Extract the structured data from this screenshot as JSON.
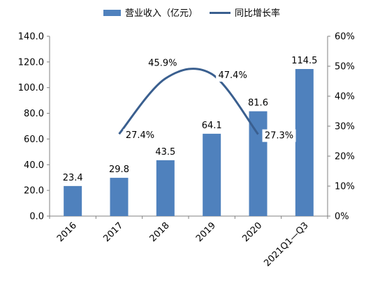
{
  "chart_data": {
    "type": "bar",
    "categories": [
      "2016",
      "2017",
      "2018",
      "2019",
      "2020",
      "2021Q1—Q3"
    ],
    "series": [
      {
        "name": "营业收入（亿元）",
        "type": "bar",
        "axis": "left",
        "color": "#4f81bd",
        "values": [
          23.4,
          29.8,
          43.5,
          64.1,
          81.6,
          114.5
        ],
        "labels": [
          "23.4",
          "29.8",
          "43.5",
          "64.1",
          "81.6",
          "114.5"
        ]
      },
      {
        "name": "同比增长率",
        "type": "line",
        "axis": "right",
        "color": "#3a5f8f",
        "values": [
          null,
          27.4,
          45.9,
          47.4,
          27.3,
          null
        ],
        "labels": [
          null,
          "27.4%",
          "45.9%",
          "47.4%",
          "27.3%",
          null
        ]
      }
    ],
    "y_left": {
      "ylim": [
        0,
        140
      ],
      "ticks": [
        "0.0",
        "20.0",
        "40.0",
        "60.0",
        "80.0",
        "100.0",
        "120.0",
        "140.0"
      ]
    },
    "y_right": {
      "ylim": [
        0,
        60
      ],
      "ticks": [
        "0%",
        "10%",
        "20%",
        "30%",
        "40%",
        "50%",
        "60%"
      ]
    },
    "grid": false,
    "legend": "top-center"
  }
}
